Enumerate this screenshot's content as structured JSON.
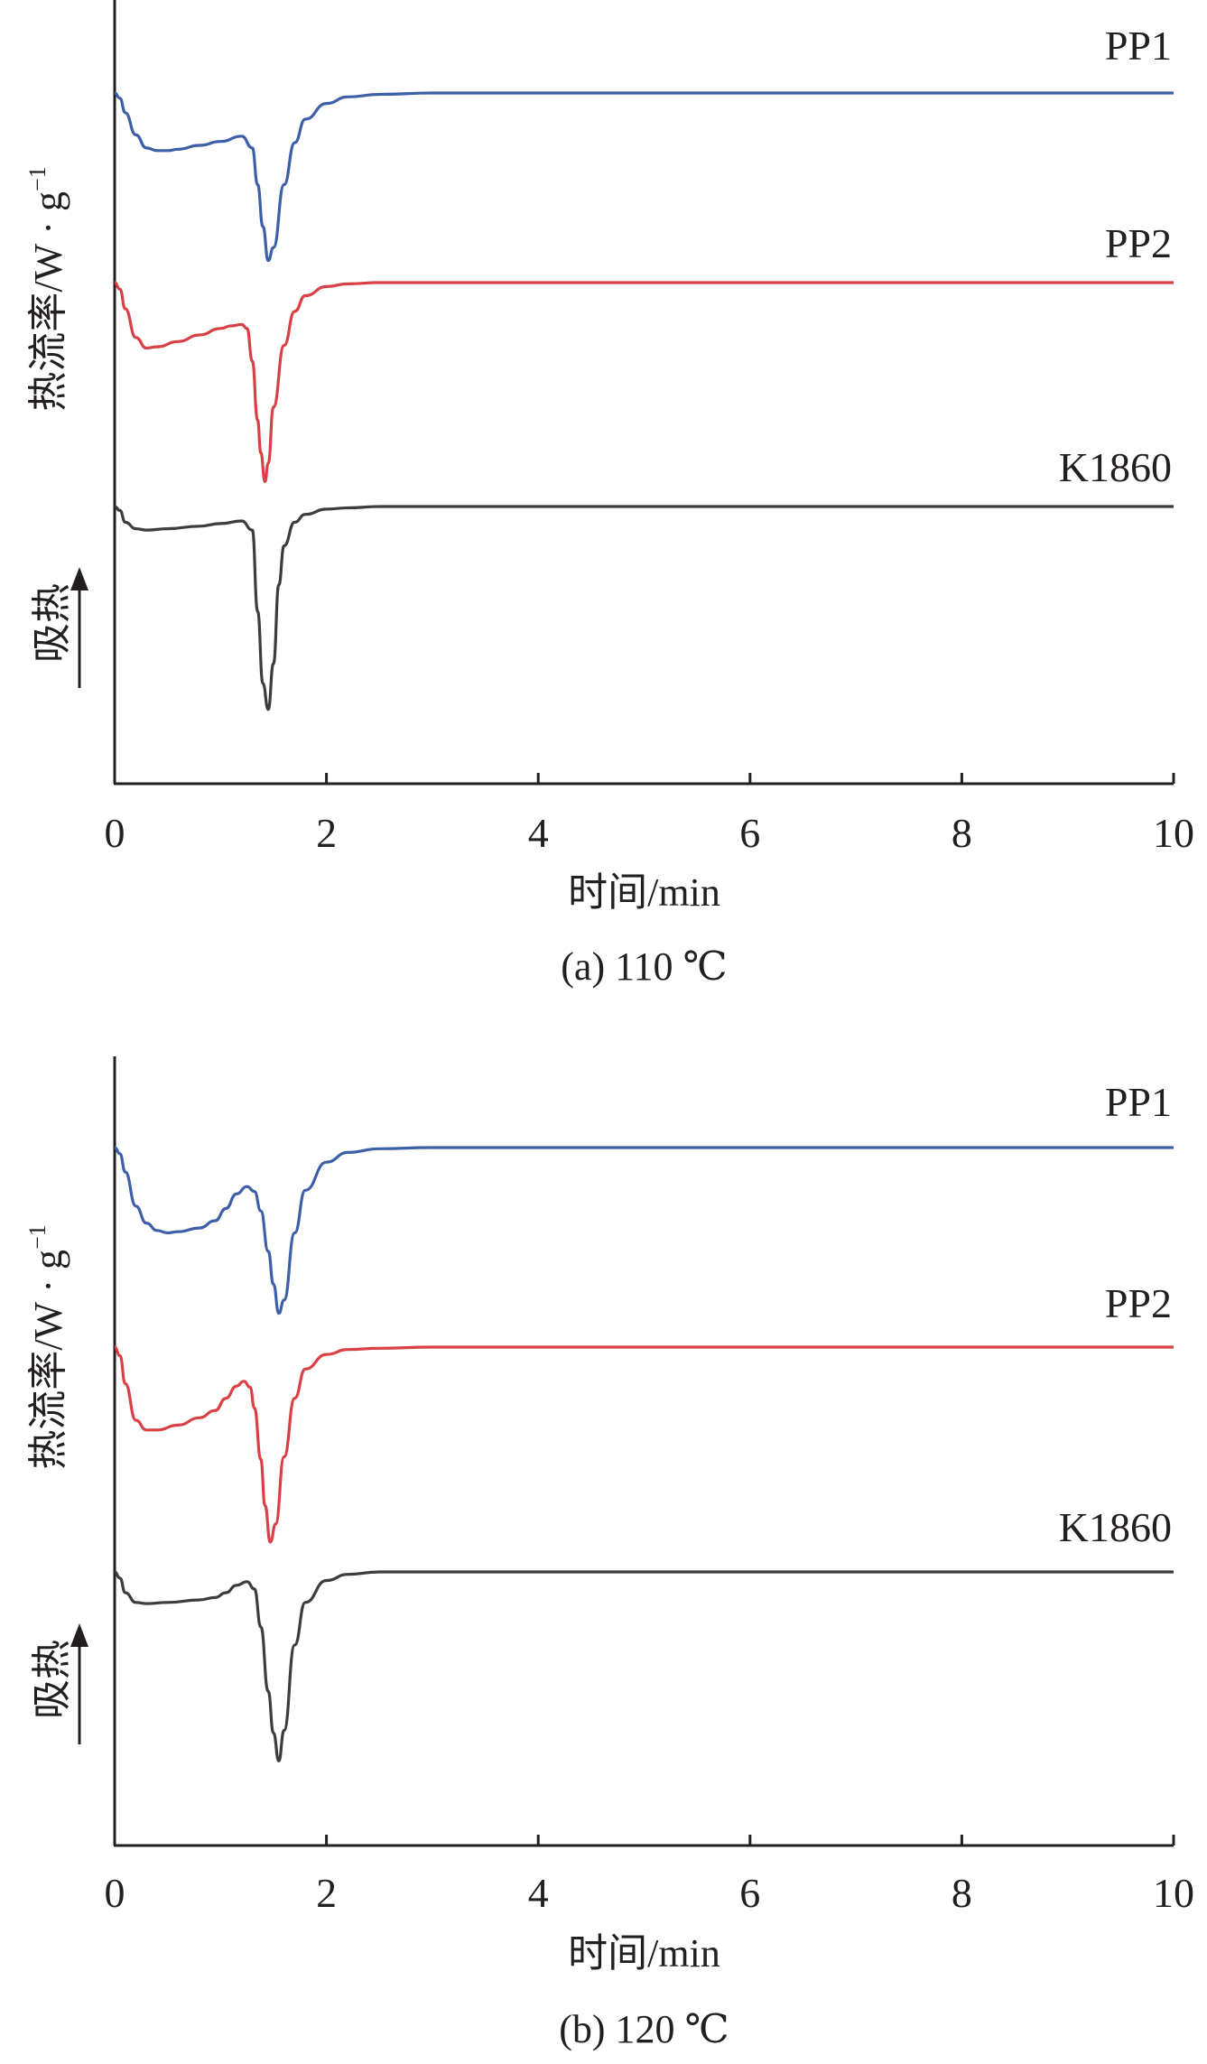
{
  "chart_data": [
    {
      "type": "line",
      "caption": "(a) 110 ℃",
      "xlabel": "时间/min",
      "ylabel": "热流率/W · g",
      "ylabel_sup": "−1",
      "endotherm_label": "吸热",
      "xlim": [
        0,
        10
      ],
      "xticks": [
        "0",
        "2",
        "4",
        "6",
        "8",
        "10"
      ],
      "y_ticks_shown": false,
      "grid": false,
      "series": [
        {
          "name": "PP1",
          "color": "#3d5fa8",
          "x": [
            0,
            0.05,
            0.1,
            0.2,
            0.3,
            0.4,
            0.5,
            0.6,
            0.8,
            1.0,
            1.2,
            1.3,
            1.35,
            1.4,
            1.45,
            1.5,
            1.6,
            1.7,
            1.8,
            2.0,
            2.2,
            2.5,
            3.0,
            4.0,
            6.0,
            8.0,
            10.0
          ],
          "y": [
            0.0,
            -0.04,
            -0.15,
            -0.32,
            -0.42,
            -0.44,
            -0.44,
            -0.43,
            -0.4,
            -0.37,
            -0.33,
            -0.42,
            -0.7,
            -1.02,
            -1.28,
            -1.18,
            -0.7,
            -0.38,
            -0.2,
            -0.08,
            -0.03,
            -0.01,
            0.0,
            0.0,
            0.0,
            0.0,
            0.0
          ]
        },
        {
          "name": "PP2",
          "color": "#d94045",
          "x": [
            0,
            0.05,
            0.1,
            0.2,
            0.3,
            0.4,
            0.6,
            0.8,
            1.0,
            1.1,
            1.2,
            1.25,
            1.3,
            1.35,
            1.38,
            1.42,
            1.45,
            1.5,
            1.6,
            1.7,
            1.8,
            2.0,
            2.2,
            2.5,
            3.0,
            4.0,
            6.0,
            8.0,
            10.0
          ],
          "y": [
            0.0,
            -0.05,
            -0.2,
            -0.42,
            -0.5,
            -0.49,
            -0.45,
            -0.4,
            -0.35,
            -0.33,
            -0.32,
            -0.35,
            -0.6,
            -1.05,
            -1.3,
            -1.52,
            -1.38,
            -0.95,
            -0.48,
            -0.22,
            -0.1,
            -0.03,
            -0.01,
            0.0,
            0.0,
            0.0,
            0.0,
            0.0,
            0.0
          ]
        },
        {
          "name": "K1860",
          "color": "#3c3c3c",
          "x": [
            0,
            0.05,
            0.1,
            0.2,
            0.3,
            0.5,
            0.8,
            1.0,
            1.2,
            1.3,
            1.35,
            1.4,
            1.45,
            1.5,
            1.55,
            1.6,
            1.7,
            1.8,
            2.0,
            2.2,
            2.5,
            3.0,
            4.0,
            6.0,
            8.0,
            10.0
          ],
          "y": [
            0.0,
            -0.03,
            -0.12,
            -0.17,
            -0.18,
            -0.17,
            -0.15,
            -0.13,
            -0.11,
            -0.18,
            -0.8,
            -1.35,
            -1.55,
            -1.2,
            -0.6,
            -0.3,
            -0.12,
            -0.06,
            -0.02,
            -0.01,
            0.0,
            0.0,
            0.0,
            0.0,
            0.0,
            0.0
          ]
        }
      ]
    },
    {
      "type": "line",
      "caption": "(b) 120 ℃",
      "xlabel": "时间/min",
      "ylabel": "热流率/W · g",
      "ylabel_sup": "−1",
      "endotherm_label": "吸热",
      "xlim": [
        0,
        10
      ],
      "xticks": [
        "0",
        "2",
        "4",
        "6",
        "8",
        "10"
      ],
      "y_ticks_shown": false,
      "grid": false,
      "series": [
        {
          "name": "PP1",
          "color": "#3d5fa8",
          "x": [
            0,
            0.05,
            0.1,
            0.2,
            0.3,
            0.4,
            0.5,
            0.6,
            0.8,
            0.95,
            1.05,
            1.15,
            1.25,
            1.32,
            1.38,
            1.45,
            1.5,
            1.55,
            1.6,
            1.7,
            1.8,
            2.0,
            2.2,
            2.5,
            3.0,
            4.0,
            6.0,
            8.0,
            10.0
          ],
          "y": [
            0.0,
            -0.05,
            -0.2,
            -0.48,
            -0.62,
            -0.68,
            -0.7,
            -0.69,
            -0.66,
            -0.6,
            -0.5,
            -0.38,
            -0.32,
            -0.36,
            -0.52,
            -0.85,
            -1.12,
            -1.36,
            -1.25,
            -0.7,
            -0.35,
            -0.12,
            -0.04,
            -0.01,
            0.0,
            0.0,
            0.0,
            0.0,
            0.0
          ]
        },
        {
          "name": "PP2",
          "color": "#d94045",
          "x": [
            0,
            0.05,
            0.1,
            0.2,
            0.3,
            0.4,
            0.6,
            0.8,
            0.95,
            1.05,
            1.15,
            1.22,
            1.28,
            1.32,
            1.38,
            1.42,
            1.47,
            1.52,
            1.6,
            1.7,
            1.8,
            2.0,
            2.2,
            2.5,
            3.0,
            4.0,
            6.0,
            8.0,
            10.0
          ],
          "y": [
            0.0,
            -0.07,
            -0.3,
            -0.6,
            -0.68,
            -0.68,
            -0.64,
            -0.58,
            -0.52,
            -0.42,
            -0.32,
            -0.28,
            -0.33,
            -0.5,
            -0.92,
            -1.3,
            -1.6,
            -1.45,
            -0.9,
            -0.42,
            -0.18,
            -0.06,
            -0.02,
            -0.01,
            0.0,
            0.0,
            0.0,
            0.0,
            0.0
          ]
        },
        {
          "name": "K1860",
          "color": "#3c3c3c",
          "x": [
            0,
            0.05,
            0.1,
            0.2,
            0.3,
            0.5,
            0.8,
            0.95,
            1.05,
            1.15,
            1.25,
            1.32,
            1.38,
            1.45,
            1.5,
            1.55,
            1.6,
            1.7,
            1.8,
            2.0,
            2.2,
            2.5,
            3.0,
            4.0,
            6.0,
            8.0,
            10.0
          ],
          "y": [
            0.0,
            -0.05,
            -0.17,
            -0.25,
            -0.26,
            -0.25,
            -0.23,
            -0.21,
            -0.17,
            -0.11,
            -0.08,
            -0.14,
            -0.45,
            -0.98,
            -1.32,
            -1.55,
            -1.3,
            -0.6,
            -0.25,
            -0.07,
            -0.02,
            0.0,
            0.0,
            0.0,
            0.0,
            0.0,
            0.0
          ]
        }
      ]
    }
  ]
}
